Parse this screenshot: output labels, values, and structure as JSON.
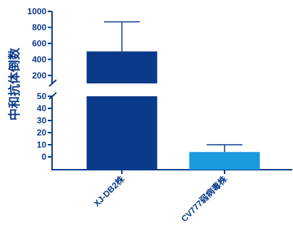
{
  "chart_data": {
    "type": "bar",
    "title": "",
    "xlabel": "",
    "ylabel": "中和抗体倒数",
    "categories": [
      "XJ-DB2株",
      "CV777弱病毒株"
    ],
    "values": [
      500,
      4
    ],
    "error_bars": [
      370,
      6
    ],
    "axis_break": true,
    "y_lower": {
      "ylim": [
        -10,
        50
      ],
      "ticks": [
        0,
        10,
        20,
        30,
        40,
        50
      ]
    },
    "y_upper": {
      "ylim": [
        100,
        1000
      ],
      "ticks": [
        200,
        400,
        600,
        800,
        1000
      ]
    },
    "bar_colors": [
      "#0b3a8a",
      "#1a9be0"
    ],
    "grid": false,
    "legend": "none"
  }
}
